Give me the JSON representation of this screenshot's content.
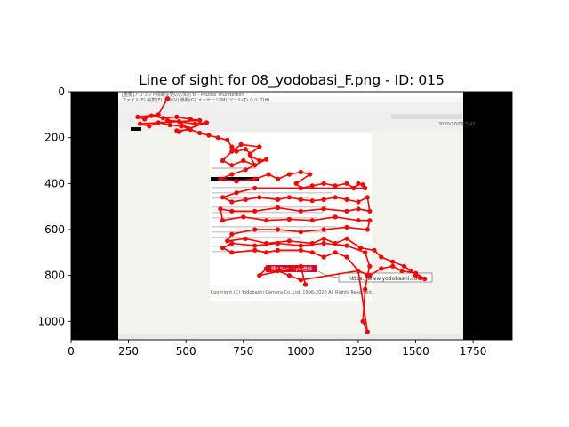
{
  "chart_data": {
    "type": "scatter",
    "title": "Line of sight for 08_yodobasi_F.png - ID: 015",
    "xlabel": "",
    "ylabel": "",
    "xlim": [
      0,
      1920
    ],
    "ylim": [
      1080,
      0
    ],
    "y_inverted": true,
    "grid": false,
    "legend": "none",
    "xticks": [
      0,
      250,
      500,
      750,
      1000,
      1250,
      1500,
      1750
    ],
    "yticks": [
      0,
      200,
      400,
      600,
      800,
      1000
    ],
    "line_color": "#ff0000",
    "background_image": {
      "description_text": {
        "window_title": "[重要]アカウント情報変更のお知らせ - Mozilla Thunderbird",
        "menu": "ファイル(F)  編集(E)  表示(V)  移動(G)  メッセージ(M)  ツール(T)  ヘルプ(H)",
        "date": "2020/10/09 5:48",
        "link_text": "https://www.yodobashi.com",
        "button_text": "購入SecurityID登録",
        "copyright": "Copyright (C) Yodobashi Camera Co.,Ltd. 1996-2020 All Rights Reserved."
      }
    },
    "series": [
      {
        "points": [
          [
            420,
            30
          ],
          [
            380,
            100
          ],
          [
            290,
            110
          ],
          [
            320,
            120
          ],
          [
            350,
            105
          ],
          [
            400,
            115
          ],
          [
            460,
            110
          ],
          [
            520,
            120
          ],
          [
            560,
            125
          ],
          [
            300,
            140
          ],
          [
            340,
            150
          ],
          [
            380,
            135
          ],
          [
            430,
            145
          ],
          [
            480,
            150
          ],
          [
            510,
            160
          ],
          [
            470,
            130
          ],
          [
            420,
            125
          ],
          [
            540,
            140
          ],
          [
            590,
            135
          ],
          [
            470,
            175
          ],
          [
            460,
            170
          ],
          [
            520,
            165
          ],
          [
            560,
            180
          ],
          [
            600,
            190
          ],
          [
            640,
            200
          ],
          [
            680,
            210
          ],
          [
            700,
            240
          ],
          [
            720,
            260
          ],
          [
            760,
            250
          ],
          [
            780,
            270
          ],
          [
            820,
            240
          ],
          [
            740,
            230
          ],
          [
            700,
            260
          ],
          [
            660,
            300
          ],
          [
            700,
            320
          ],
          [
            750,
            300
          ],
          [
            800,
            320
          ],
          [
            780,
            280
          ],
          [
            820,
            300
          ],
          [
            850,
            295
          ],
          [
            760,
            340
          ],
          [
            700,
            360
          ],
          [
            650,
            380
          ],
          [
            720,
            390
          ],
          [
            800,
            380
          ],
          [
            860,
            360
          ],
          [
            900,
            380
          ],
          [
            950,
            360
          ],
          [
            1000,
            350
          ],
          [
            1040,
            360
          ],
          [
            980,
            400
          ],
          [
            1000,
            420
          ],
          [
            1050,
            410
          ],
          [
            1100,
            400
          ],
          [
            1150,
            410
          ],
          [
            1200,
            400
          ],
          [
            1230,
            420
          ],
          [
            1250,
            400
          ],
          [
            1270,
            405
          ],
          [
            1280,
            420
          ],
          [
            800,
            420
          ],
          [
            720,
            440
          ],
          [
            660,
            460
          ],
          [
            700,
            480
          ],
          [
            760,
            470
          ],
          [
            820,
            460
          ],
          [
            900,
            470
          ],
          [
            950,
            460
          ],
          [
            1000,
            470
          ],
          [
            1050,
            475
          ],
          [
            1100,
            470
          ],
          [
            1150,
            460
          ],
          [
            1200,
            470
          ],
          [
            1250,
            480
          ],
          [
            1290,
            460
          ],
          [
            1300,
            520
          ],
          [
            1250,
            510
          ],
          [
            1200,
            520
          ],
          [
            1100,
            510
          ],
          [
            1000,
            520
          ],
          [
            900,
            505
          ],
          [
            800,
            520
          ],
          [
            700,
            520
          ],
          [
            650,
            510
          ],
          [
            660,
            560
          ],
          [
            750,
            545
          ],
          [
            850,
            560
          ],
          [
            950,
            555
          ],
          [
            1050,
            560
          ],
          [
            1150,
            545
          ],
          [
            1250,
            560
          ],
          [
            1300,
            560
          ],
          [
            1290,
            600
          ],
          [
            1200,
            590
          ],
          [
            1100,
            600
          ],
          [
            1000,
            610
          ],
          [
            900,
            600
          ],
          [
            800,
            600
          ],
          [
            700,
            620
          ],
          [
            680,
            650
          ],
          [
            760,
            640
          ],
          [
            850,
            660
          ],
          [
            950,
            650
          ],
          [
            1050,
            660
          ],
          [
            1100,
            640
          ],
          [
            1150,
            660
          ],
          [
            1200,
            640
          ],
          [
            1260,
            680
          ],
          [
            1320,
            690
          ],
          [
            1350,
            720
          ],
          [
            1400,
            740
          ],
          [
            1450,
            760
          ],
          [
            1480,
            780
          ],
          [
            1500,
            800
          ],
          [
            1520,
            810
          ],
          [
            1540,
            815
          ],
          [
            1500,
            790
          ],
          [
            1440,
            780
          ],
          [
            1400,
            760
          ],
          [
            1350,
            770
          ],
          [
            1300,
            800
          ],
          [
            1250,
            780
          ],
          [
            1200,
            720
          ],
          [
            1150,
            700
          ],
          [
            1100,
            720
          ],
          [
            1050,
            700
          ],
          [
            1000,
            690
          ],
          [
            900,
            690
          ],
          [
            850,
            700
          ],
          [
            800,
            690
          ],
          [
            700,
            700
          ],
          [
            660,
            680
          ],
          [
            700,
            660
          ],
          [
            800,
            670
          ],
          [
            900,
            660
          ],
          [
            1000,
            670
          ],
          [
            1100,
            660
          ],
          [
            1200,
            670
          ],
          [
            1280,
            700
          ],
          [
            1300,
            760
          ],
          [
            1290,
            800
          ],
          [
            1280,
            860
          ],
          [
            1270,
            1000
          ],
          [
            1290,
            1045
          ],
          [
            1250,
            780
          ],
          [
            1000,
            820
          ],
          [
            950,
            800
          ],
          [
            900,
            780
          ],
          [
            850,
            770
          ],
          [
            820,
            800
          ],
          [
            960,
            770
          ],
          [
            1000,
            760
          ],
          [
            1020,
            840
          ]
        ]
      }
    ]
  }
}
